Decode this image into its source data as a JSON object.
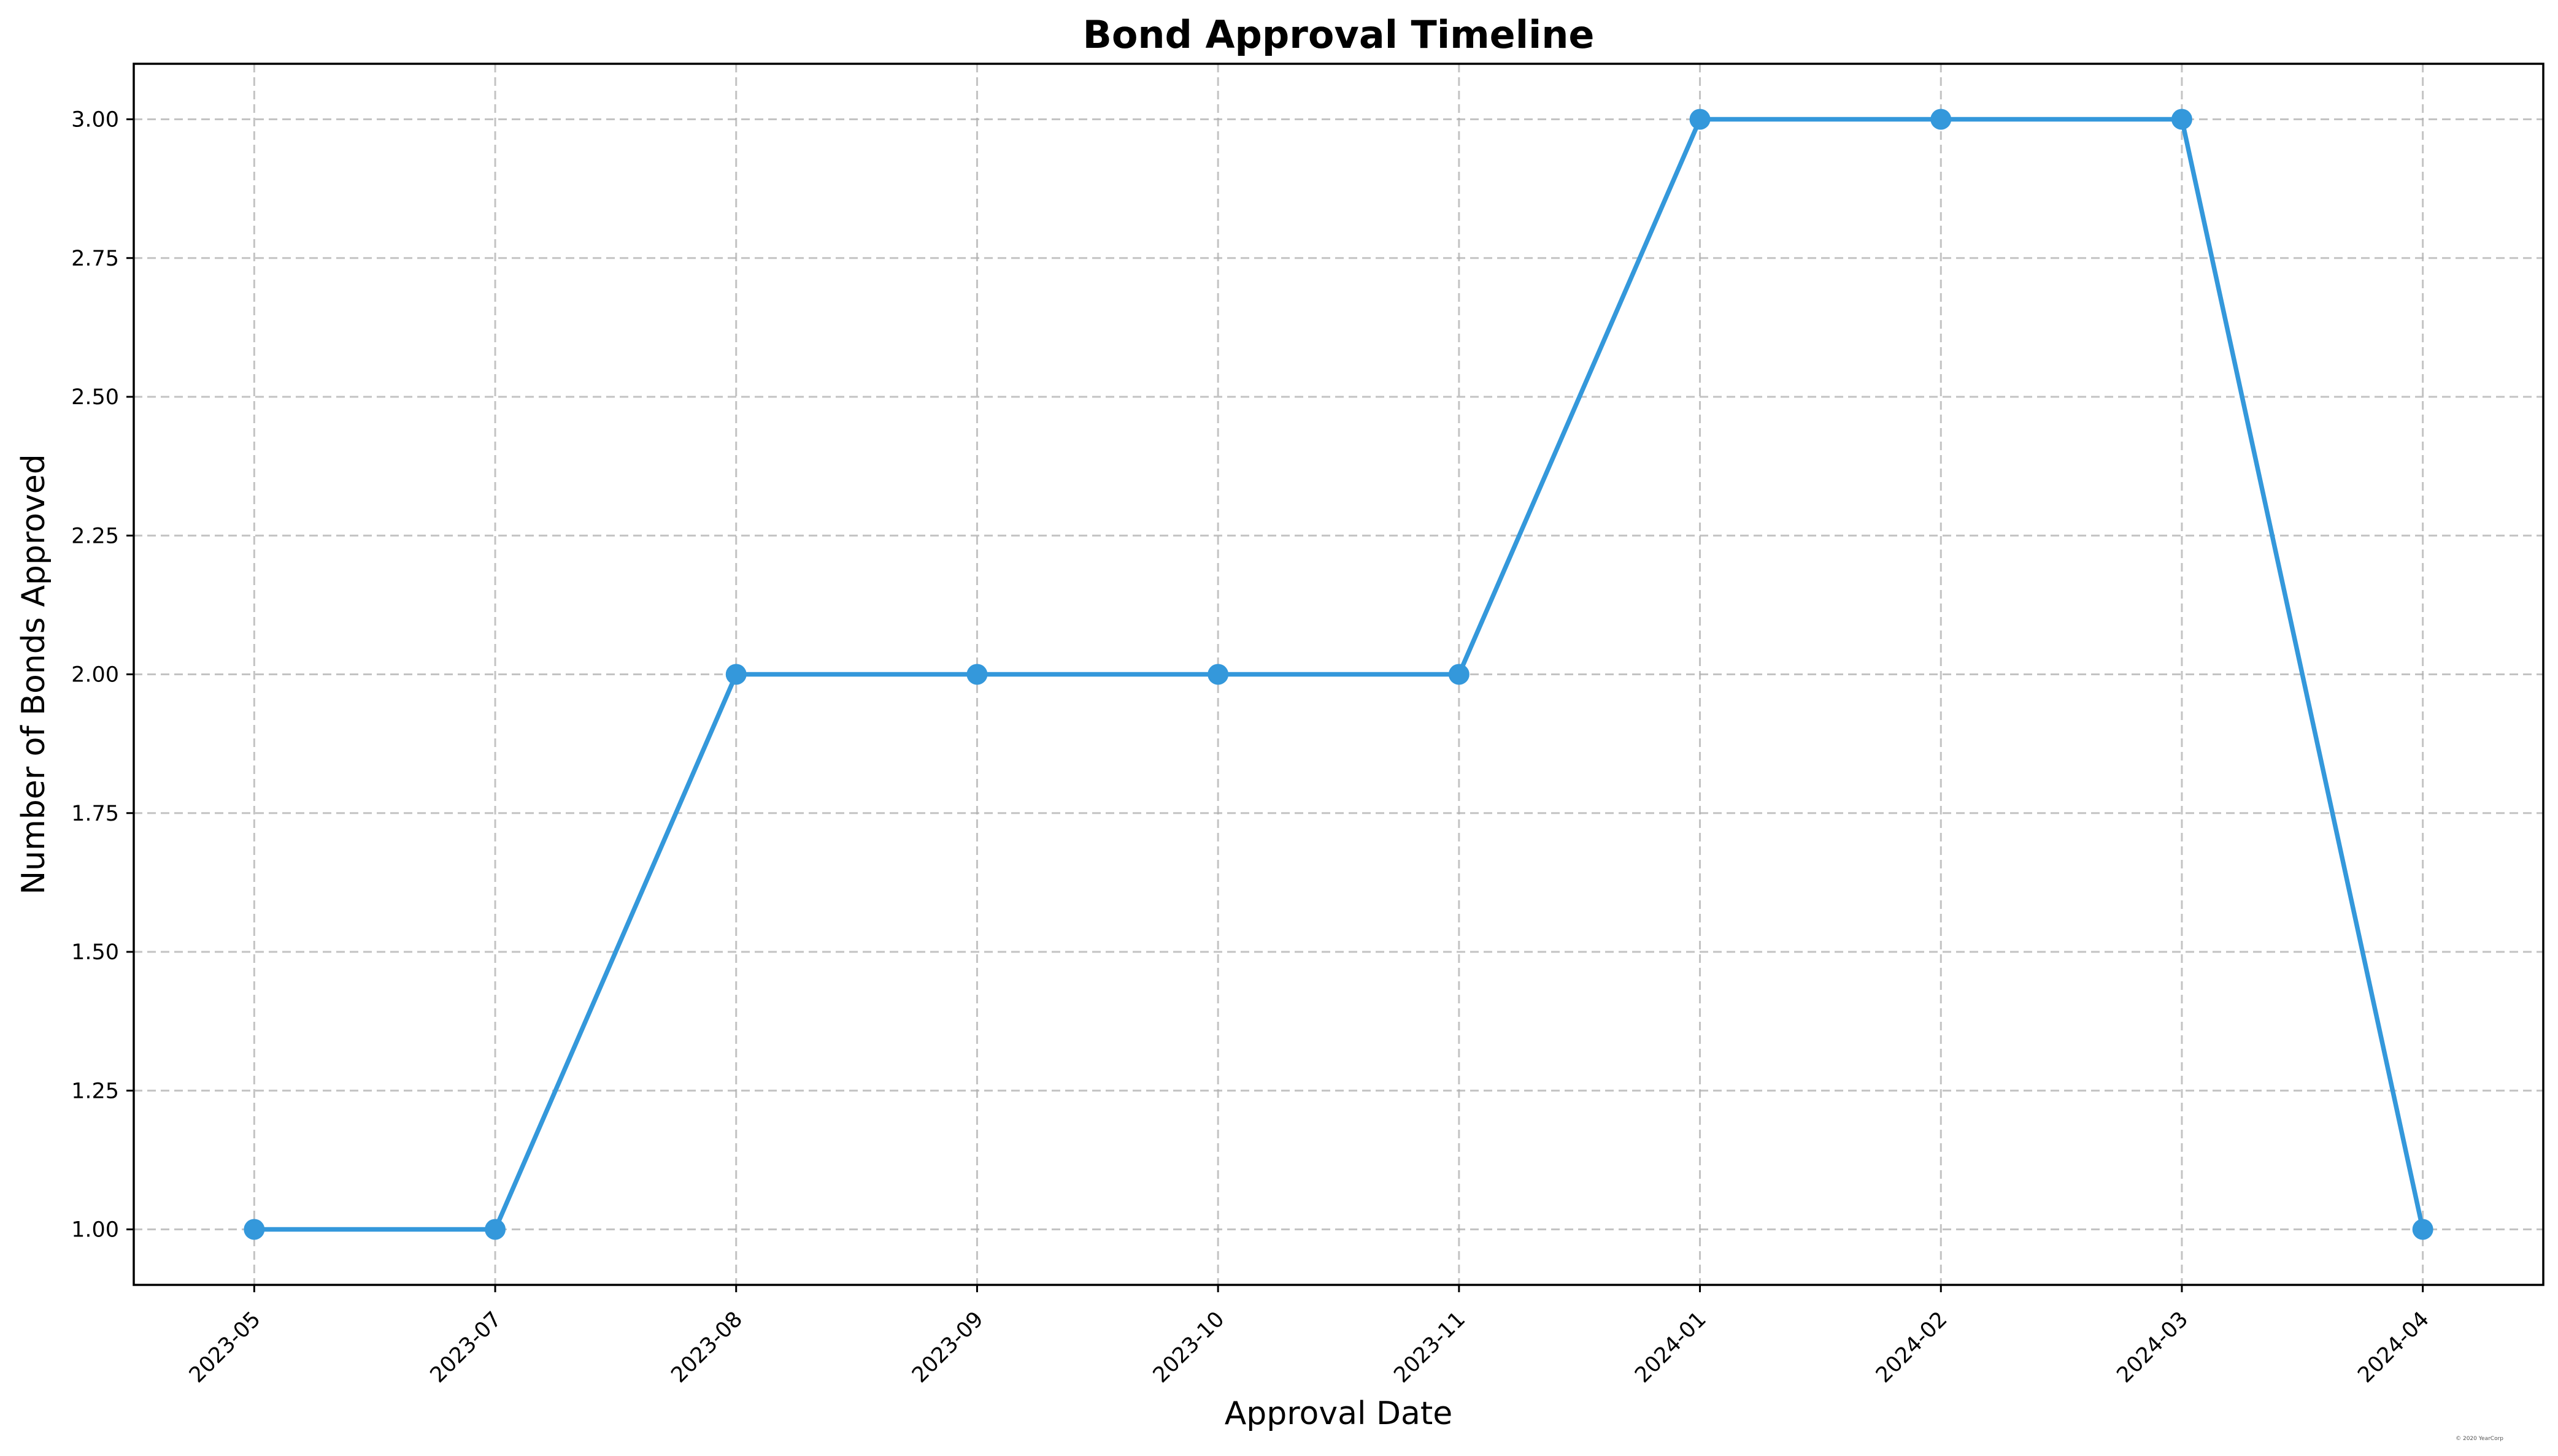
{
  "chart_data": {
    "type": "line",
    "title": "Bond Approval Timeline",
    "xlabel": "Approval Date",
    "ylabel": "Number of Bonds Approved",
    "categories": [
      "2023-05",
      "2023-07",
      "2023-08",
      "2023-09",
      "2023-10",
      "2023-11",
      "2024-01",
      "2024-02",
      "2024-03",
      "2024-04"
    ],
    "series": [
      {
        "values": [
          1,
          1,
          2,
          2,
          2,
          2,
          3,
          3,
          3,
          1
        ],
        "color": "#3498db"
      }
    ],
    "ylim": [
      0.9,
      3.1
    ],
    "yticks": [
      1.0,
      1.25,
      1.5,
      1.75,
      2.0,
      2.25,
      2.5,
      2.75,
      3.0
    ],
    "ytick_labels": [
      "1.00",
      "1.25",
      "1.50",
      "1.75",
      "2.00",
      "2.25",
      "2.50",
      "2.75",
      "3.00"
    ],
    "grid": true,
    "marker": "circle",
    "footnote": "© 2020 YearCorp"
  }
}
